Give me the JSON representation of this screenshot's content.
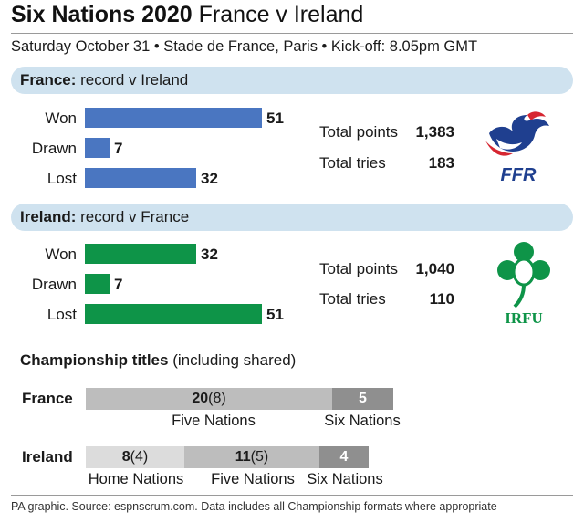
{
  "header": {
    "title_bold": "Six Nations 2020",
    "title_rest": " France v Ireland",
    "subtitle": "Saturday October 31 • Stade de France, Paris • Kick-off: 8.05pm GMT"
  },
  "colors": {
    "france": "#4a76c1",
    "ireland": "#0e9448",
    "band": "#cfe2ef"
  },
  "france": {
    "team": "France:",
    "record_label": " record v Ireland",
    "total_points_label": "Total points",
    "total_points": "1,383",
    "total_tries_label": "Total tries",
    "total_tries": "183",
    "logo_text": "FFR",
    "logo_icon": "rooster-logo-icon"
  },
  "ireland": {
    "team": "Ireland:",
    "record_label": " record v France",
    "total_points_label": "Total points",
    "total_points": "1,040",
    "total_tries_label": "Total tries",
    "total_tries": "110",
    "logo_text": "IRFU",
    "logo_icon": "shamrock-logo-icon"
  },
  "chart_data": [
    {
      "type": "bar",
      "orientation": "horizontal",
      "categories": [
        "Won",
        "Drawn",
        "Lost"
      ],
      "values": [
        51,
        7,
        32
      ],
      "color": "#4a76c1"
    },
    {
      "type": "bar",
      "orientation": "horizontal",
      "categories": [
        "Won",
        "Drawn",
        "Lost"
      ],
      "values": [
        32,
        7,
        51
      ],
      "color": "#0e9448"
    },
    {
      "type": "bar",
      "orientation": "stacked-horizontal",
      "categories": [
        "France",
        "Ireland"
      ],
      "series": [
        {
          "name": "Home Nations",
          "values": [
            null,
            8
          ],
          "shared": [
            null,
            4
          ],
          "color": "#dcdcdc"
        },
        {
          "name": "Five Nations",
          "values": [
            20,
            11
          ],
          "shared": [
            8,
            5
          ],
          "color": "#bdbdbd"
        },
        {
          "name": "Six Nations",
          "values": [
            5,
            4
          ],
          "shared": [
            null,
            null
          ],
          "color": "#8f8f8f"
        }
      ]
    }
  ],
  "championship": {
    "heading_bold": "Championship titles",
    "heading_rest": " (including shared)",
    "france_label": "France",
    "ireland_label": "Ireland",
    "france_five_value": "20",
    "france_five_shared": " (8)",
    "france_five_caption": "Five Nations",
    "france_six_value": "5",
    "france_six_caption": "Six Nations",
    "ireland_home_value": "8",
    "ireland_home_shared": " (4)",
    "ireland_home_caption": "Home Nations",
    "ireland_five_value": "11",
    "ireland_five_shared": " (5)",
    "ireland_five_caption": "Five Nations",
    "ireland_six_value": "4",
    "ireland_six_caption": "Six Nations"
  },
  "footnote": "PA graphic. Source: espnscrum.com. Data includes all Championship formats where appropriate"
}
